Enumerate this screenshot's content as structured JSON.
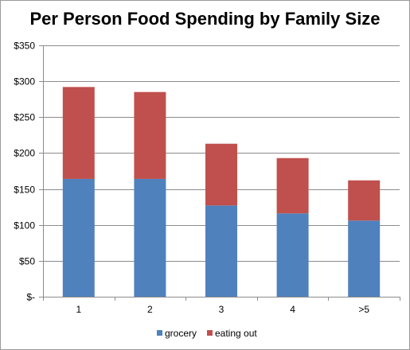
{
  "chart_data": {
    "type": "bar",
    "stacked": true,
    "title": "Per Person Food Spending by Family Size",
    "xlabel": "",
    "ylabel": "",
    "categories": [
      "1",
      "2",
      "3",
      "4",
      ">5"
    ],
    "series": [
      {
        "name": "grocery",
        "color": "#4f81bd",
        "values": [
          164,
          164,
          127,
          116,
          106
        ]
      },
      {
        "name": "eating out",
        "color": "#c0504d",
        "values": [
          128,
          121,
          86,
          77,
          56
        ]
      }
    ],
    "ylim": [
      0,
      350
    ],
    "yticks": [
      0,
      50,
      100,
      150,
      200,
      250,
      300,
      350
    ],
    "ytick_labels": [
      "$-",
      "$50",
      "$100",
      "$150",
      "$200",
      "$250",
      "$300",
      "$350"
    ],
    "grid": true,
    "legend_position": "bottom"
  }
}
